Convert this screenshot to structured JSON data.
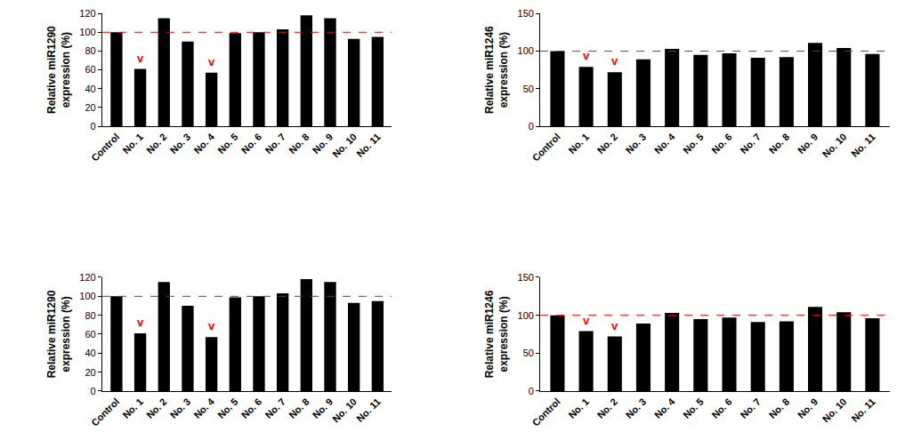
{
  "chart_data": [
    {
      "type": "bar",
      "y_label_lines": [
        "Relative miR1290",
        "expression (%)"
      ],
      "categories": [
        "Control",
        "No. 1",
        "No. 2",
        "No. 3",
        "No. 4",
        "No. 5",
        "No. 6",
        "No. 7",
        "No. 8",
        "No. 9",
        "No. 10",
        "No. 11"
      ],
      "values": [
        100,
        61,
        115,
        90,
        57,
        99,
        100,
        103,
        118,
        115,
        93,
        95
      ],
      "color": "#000000",
      "ylim": [
        0,
        120
      ],
      "yticks": [
        0,
        20,
        40,
        60,
        80,
        100,
        120
      ],
      "grid": false,
      "reference_line": {
        "value": 100,
        "color": "#ff0000",
        "line_style": "dashed"
      },
      "annotations": [
        {
          "category": "No. 1",
          "text": "v",
          "color": "#ff0000"
        },
        {
          "category": "No. 4",
          "text": "v",
          "color": "#ff0000"
        }
      ]
    },
    {
      "type": "bar",
      "y_label_lines": [
        "Relative miR1246",
        "expression (%)"
      ],
      "categories": [
        "Control",
        "No. 1",
        "No. 2",
        "No. 3",
        "No. 4",
        "No. 5",
        "No. 6",
        "No. 7",
        "No. 8",
        "No. 9",
        "No. 10",
        "No. 11"
      ],
      "values": [
        100,
        79,
        72,
        89,
        103,
        95,
        97,
        91,
        92,
        111,
        104,
        96
      ],
      "color": "#000000",
      "ylim": [
        0,
        150
      ],
      "yticks": [
        0,
        50,
        100,
        150
      ],
      "grid": false,
      "reference_line": {
        "value": 100,
        "color": "#ff0000",
        "line_style": "dashed"
      },
      "annotations": [
        {
          "category": "No. 1",
          "text": "v",
          "color": "#ff0000"
        },
        {
          "category": "No. 2",
          "text": "v",
          "color": "#ff0000"
        }
      ]
    },
    {
      "type": "bar",
      "y_label_lines": [
        "Relative miR1290",
        "expression (%)"
      ],
      "categories": [
        "Control",
        "No. 1",
        "No. 2",
        "No. 3",
        "No. 4",
        "No. 5",
        "No. 6",
        "No. 7",
        "No. 8",
        "No. 9",
        "No. 10",
        "No. 11"
      ],
      "values": [
        100,
        61,
        115,
        90,
        57,
        99,
        100,
        103,
        118,
        115,
        93,
        95
      ],
      "color": "#000000",
      "ylim": [
        0,
        120
      ],
      "yticks": [
        0,
        20,
        40,
        60,
        80,
        100,
        120
      ],
      "grid": false,
      "reference_line": {
        "value": 100,
        "color": "#ff0000",
        "line_style": "dashed"
      },
      "annotations": [
        {
          "category": "No. 1",
          "text": "v",
          "color": "#ff0000"
        },
        {
          "category": "No. 4",
          "text": "v",
          "color": "#ff0000"
        }
      ]
    },
    {
      "type": "bar",
      "y_label_lines": [
        "Relative miR1246",
        "expression (%)"
      ],
      "categories": [
        "Control",
        "No. 1",
        "No. 2",
        "No. 3",
        "No. 4",
        "No. 5",
        "No. 6",
        "No. 7",
        "No. 8",
        "No. 9",
        "No. 10",
        "No. 11"
      ],
      "values": [
        100,
        79,
        72,
        89,
        103,
        95,
        97,
        91,
        92,
        111,
        104,
        96
      ],
      "color": "#000000",
      "ylim": [
        0,
        150
      ],
      "yticks": [
        0,
        50,
        100,
        150
      ],
      "grid": false,
      "reference_line": {
        "value": 100,
        "color": "#ff0000",
        "line_style": "dashed"
      },
      "annotations": [
        {
          "category": "No. 1",
          "text": "v",
          "color": "#ff0000"
        },
        {
          "category": "No. 2",
          "text": "v",
          "color": "#ff0000"
        }
      ]
    }
  ]
}
